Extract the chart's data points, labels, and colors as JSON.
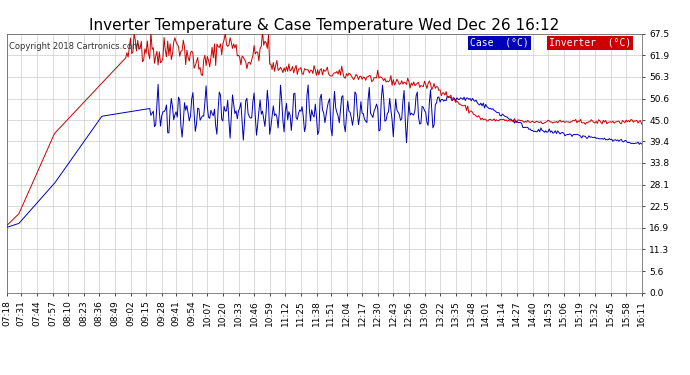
{
  "title": "Inverter Temperature & Case Temperature Wed Dec 26 16:12",
  "copyright": "Copyright 2018 Cartronics.com",
  "legend_case_label": "Case  (°C)",
  "legend_inverter_label": "Inverter  (°C)",
  "case_color": "#0000bb",
  "inverter_color": "#cc0000",
  "legend_case_bg": "#0000bb",
  "legend_inverter_bg": "#cc0000",
  "ylim": [
    0.0,
    67.5
  ],
  "yticks": [
    0.0,
    5.6,
    11.3,
    16.9,
    22.5,
    28.1,
    33.8,
    39.4,
    45.0,
    50.6,
    56.3,
    61.9,
    67.5
  ],
  "background_color": "#ffffff",
  "grid_color": "#cccccc",
  "title_fontsize": 11,
  "tick_fontsize": 6.5,
  "copyright_fontsize": 6
}
